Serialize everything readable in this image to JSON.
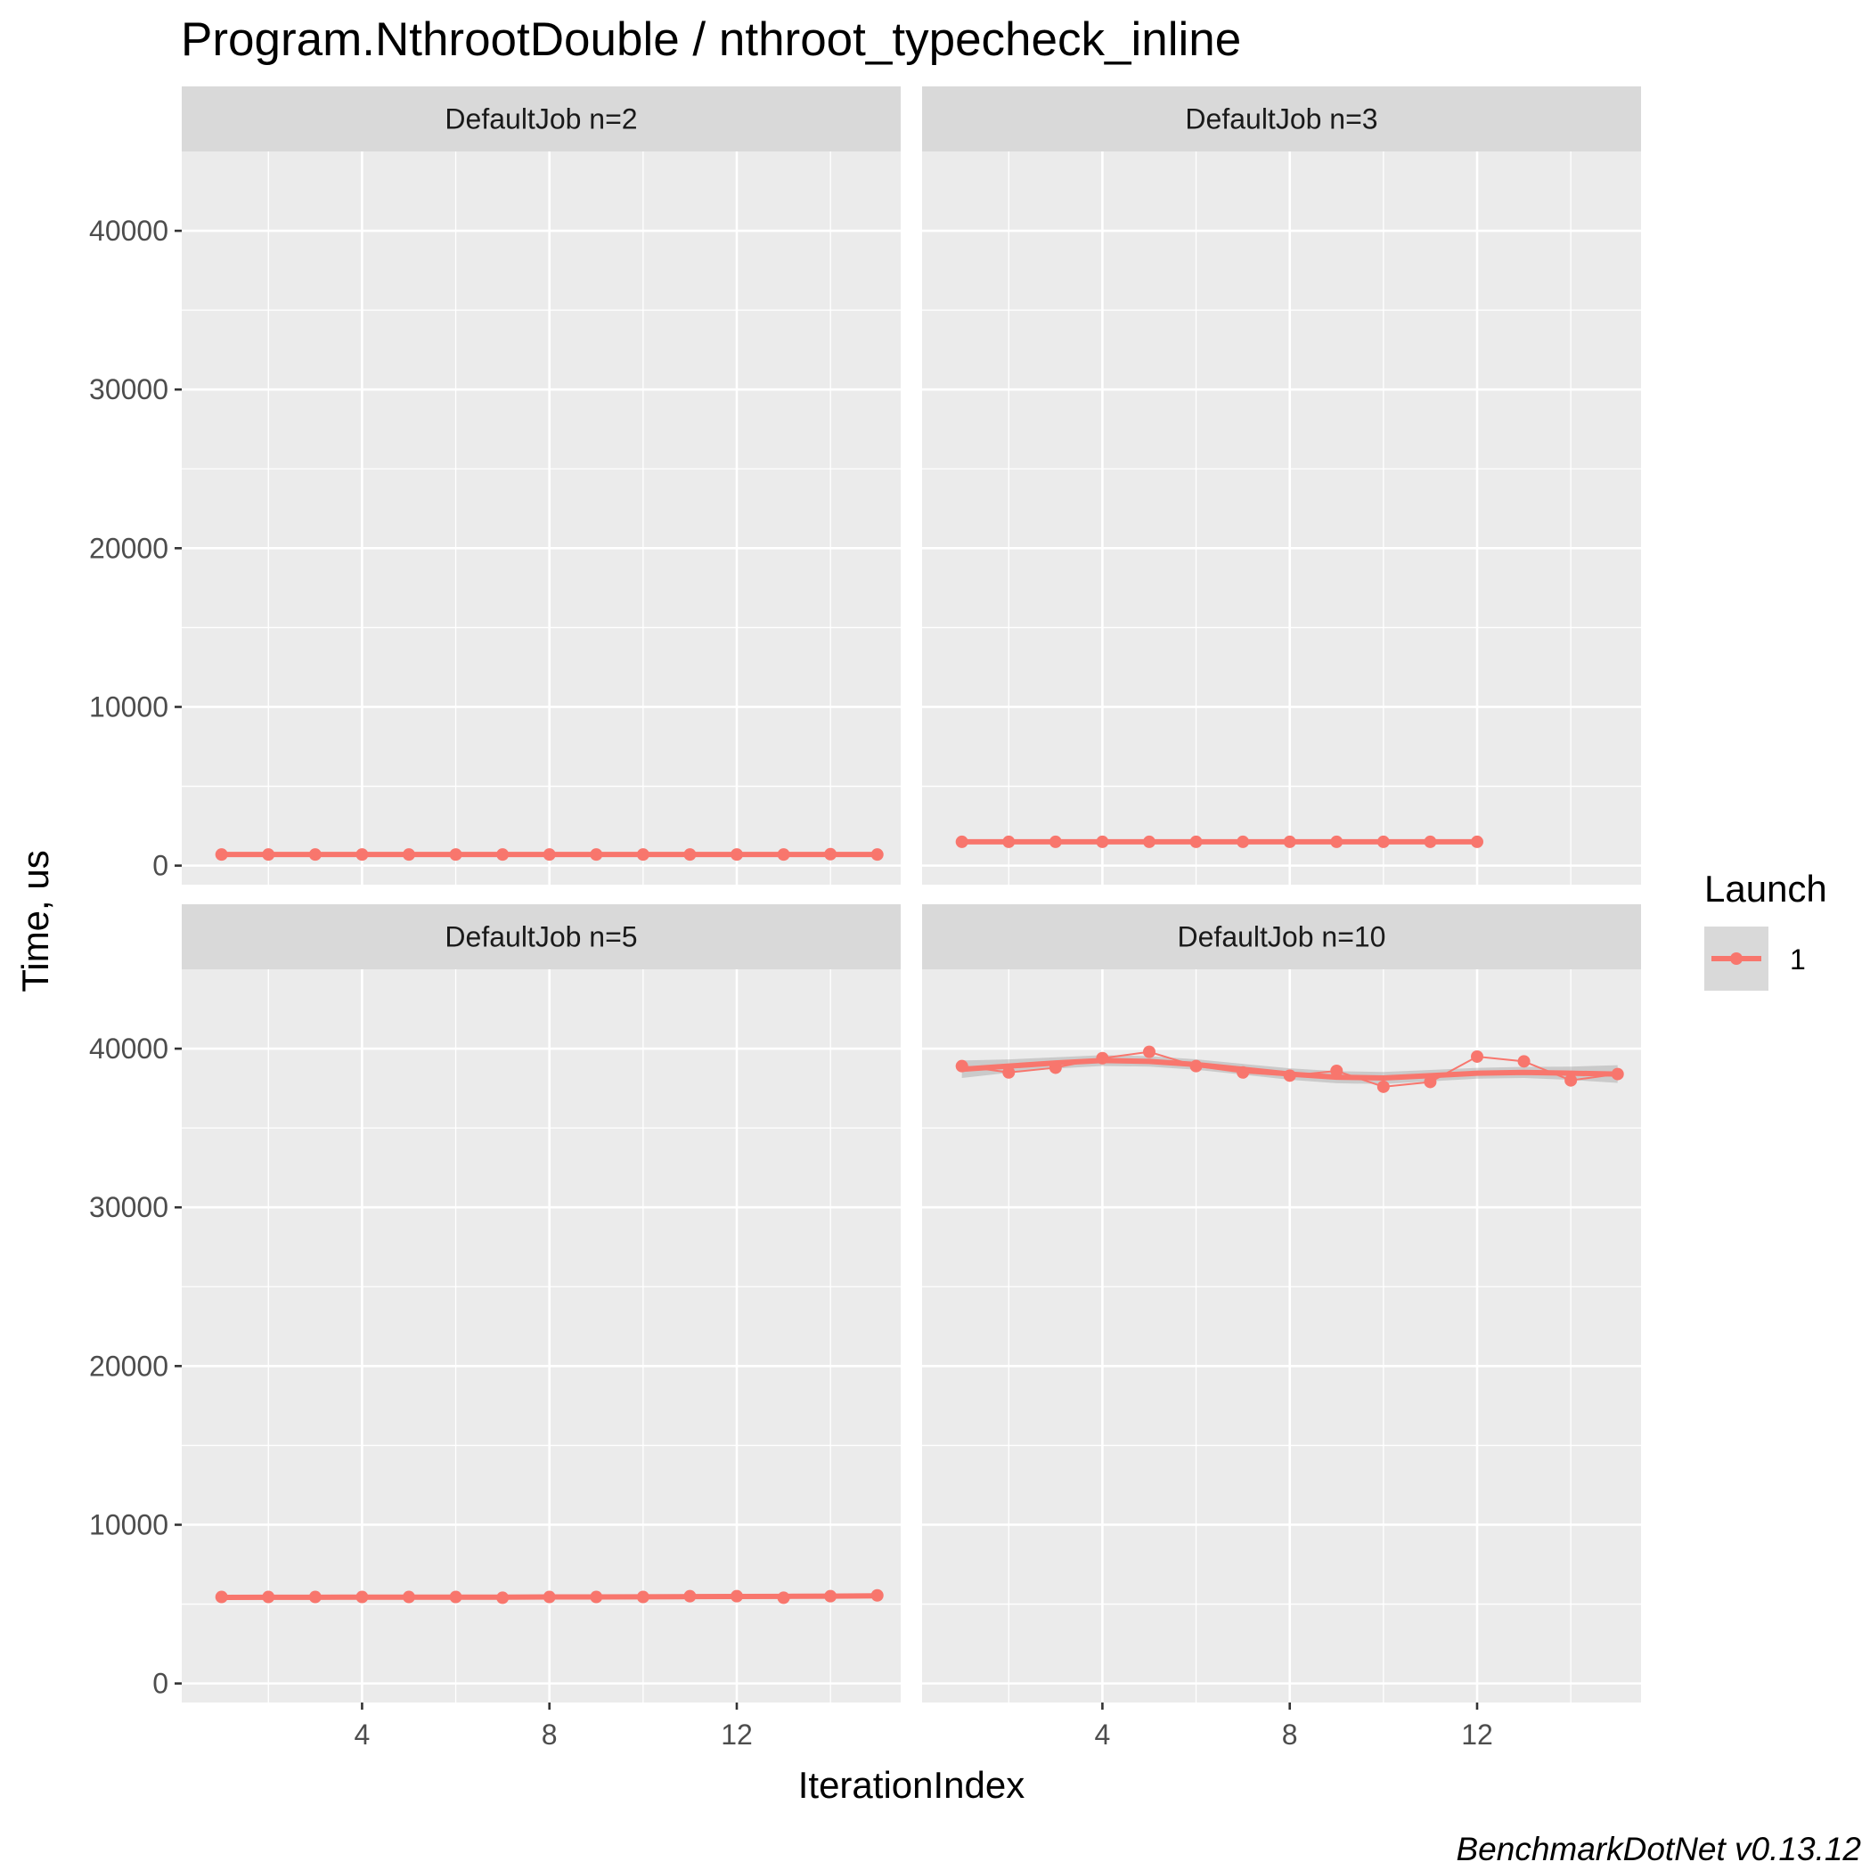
{
  "chart_data": {
    "type": "line",
    "title": "Program.NthrootDouble / nthroot_typecheck_inline",
    "xlabel": "IterationIndex",
    "ylabel": "Time, us",
    "caption": "BenchmarkDotNet v0.13.12",
    "xlim": [
      0.15,
      15.5
    ],
    "ylim": [
      -1200,
      45000
    ],
    "x_ticks": [
      4,
      8,
      12
    ],
    "y_ticks": [
      0,
      10000,
      20000,
      30000,
      40000
    ],
    "y_tick_labels": [
      "0",
      "10000",
      "20000",
      "30000",
      "40000"
    ],
    "grid": true,
    "facets": "2x2",
    "legend": {
      "title": "Launch",
      "position": "right",
      "entries": [
        {
          "label": "1",
          "color": "#f8766d"
        }
      ]
    },
    "panels": [
      {
        "strip": "DefaultJob n=2",
        "series": [
          {
            "name": "1",
            "color": "#f8766d",
            "x": [
              1,
              2,
              3,
              4,
              5,
              6,
              7,
              8,
              9,
              10,
              11,
              12,
              13,
              14,
              15
            ],
            "y": [
              700,
              700,
              700,
              700,
              700,
              700,
              700,
              700,
              700,
              700,
              700,
              700,
              700,
              720,
              700
            ]
          }
        ],
        "smooth": [
          700,
          700,
          700,
          700,
          700,
          700,
          700,
          700,
          700,
          700,
          700,
          700,
          700,
          700,
          700
        ]
      },
      {
        "strip": "DefaultJob n=3",
        "series": [
          {
            "name": "1",
            "color": "#f8766d",
            "x": [
              1,
              2,
              3,
              4,
              5,
              6,
              7,
              8,
              9,
              10,
              11,
              12
            ],
            "y": [
              1500,
              1500,
              1500,
              1500,
              1500,
              1500,
              1500,
              1500,
              1500,
              1500,
              1500,
              1500
            ]
          }
        ],
        "smooth": [
          1500,
          1500,
          1500,
          1500,
          1500,
          1500,
          1500,
          1500,
          1500,
          1500,
          1500,
          1500
        ]
      },
      {
        "strip": "DefaultJob n=5",
        "series": [
          {
            "name": "1",
            "color": "#f8766d",
            "x": [
              1,
              2,
              3,
              4,
              5,
              6,
              7,
              8,
              9,
              10,
              11,
              12,
              13,
              14,
              15
            ],
            "y": [
              5450,
              5450,
              5450,
              5450,
              5450,
              5450,
              5400,
              5450,
              5450,
              5450,
              5500,
              5500,
              5400,
              5500,
              5550
            ]
          }
        ],
        "smooth": [
          5420,
          5430,
          5430,
          5440,
          5440,
          5440,
          5440,
          5450,
          5450,
          5460,
          5470,
          5480,
          5490,
          5500,
          5520
        ]
      },
      {
        "strip": "DefaultJob n=10",
        "series": [
          {
            "name": "1",
            "color": "#f8766d",
            "x": [
              1,
              2,
              3,
              4,
              5,
              6,
              7,
              8,
              9,
              10,
              11,
              12,
              13,
              14,
              15
            ],
            "y": [
              38900,
              38500,
              38800,
              39400,
              39800,
              38900,
              38500,
              38300,
              38600,
              37600,
              37900,
              39500,
              39200,
              38000,
              38400
            ]
          }
        ],
        "smooth": [
          38700,
          38900,
          39100,
          39250,
          39200,
          39000,
          38700,
          38400,
          38200,
          38150,
          38300,
          38450,
          38500,
          38450,
          38400
        ],
        "band_halfwidth": [
          550,
          420,
          360,
          340,
          330,
          330,
          340,
          360,
          380,
          380,
          360,
          340,
          350,
          420,
          560
        ]
      }
    ]
  }
}
